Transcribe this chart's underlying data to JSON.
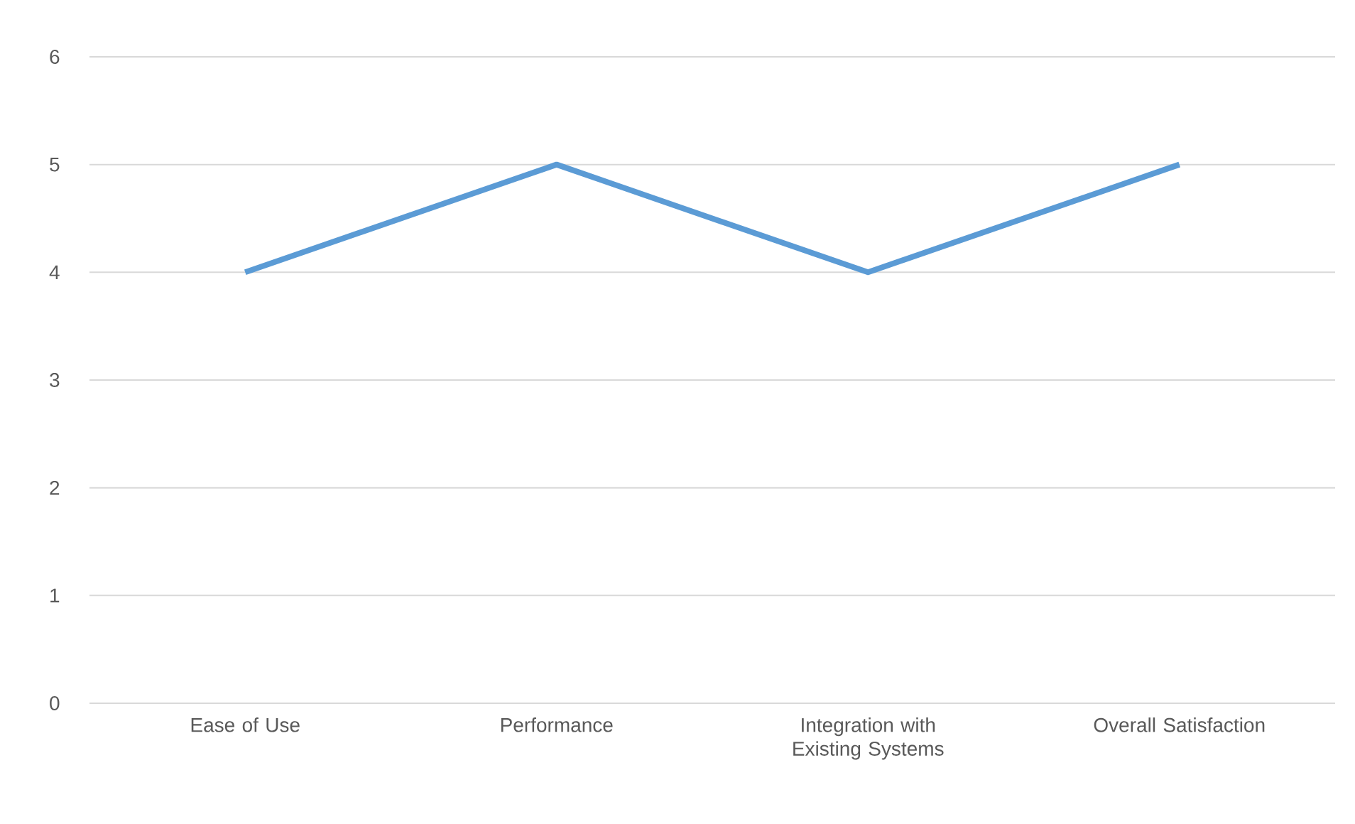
{
  "chart_data": {
    "type": "line",
    "categories": [
      "Ease of Use",
      "Performance",
      "Integration with Existing Systems",
      "Overall Satisfaction"
    ],
    "series": [
      {
        "color": "#5b9bd5",
        "values": [
          4,
          5,
          4,
          5
        ]
      }
    ],
    "ylim": [
      0,
      6
    ],
    "yticks": [
      0,
      1,
      2,
      3,
      4,
      5,
      6
    ],
    "grid": "y",
    "legend": false,
    "marker": "none",
    "line_style": "solid"
  }
}
